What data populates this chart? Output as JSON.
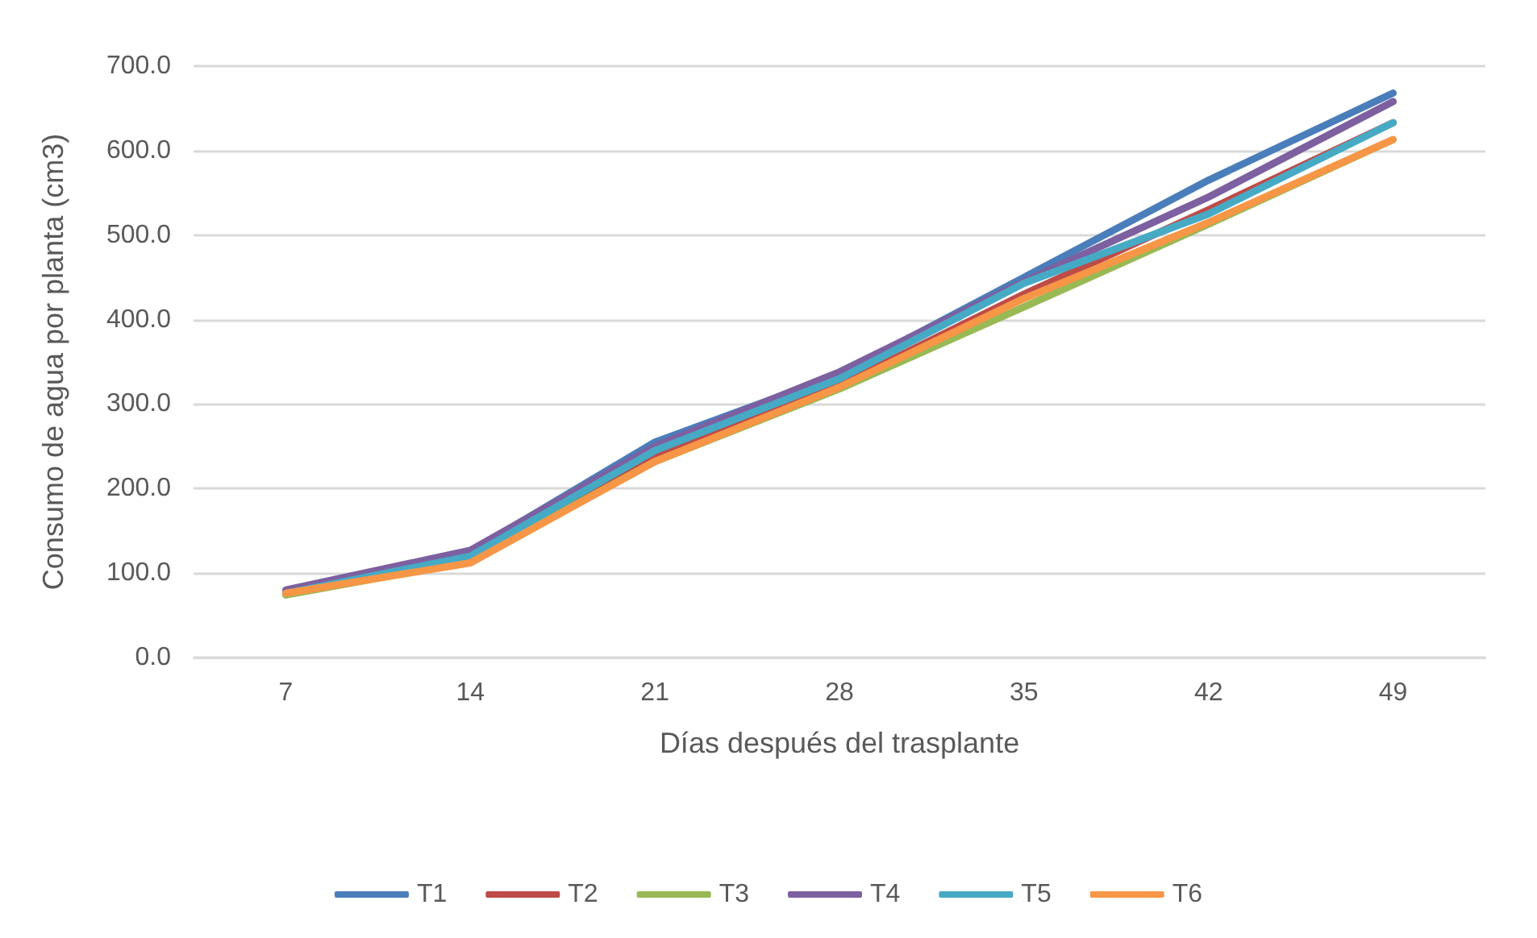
{
  "chart_data": {
    "type": "line",
    "xlabel": "Días después del trasplante",
    "ylabel": "Consumo de agua por planta (cm3)",
    "categories": [
      "7",
      "14",
      "21",
      "28",
      "35",
      "42",
      "49"
    ],
    "series": [
      {
        "name": "T1",
        "color": "#4a7ebb",
        "values": [
          76,
          125,
          255,
          335,
          450,
          565,
          668
        ]
      },
      {
        "name": "T2",
        "color": "#be4b48",
        "values": [
          76,
          118,
          238,
          322,
          430,
          530,
          633
        ]
      },
      {
        "name": "T3",
        "color": "#98b954",
        "values": [
          74,
          114,
          232,
          318,
          415,
          513,
          613
        ]
      },
      {
        "name": "T4",
        "color": "#7d60a0",
        "values": [
          80,
          127,
          250,
          338,
          445,
          545,
          658
        ]
      },
      {
        "name": "T5",
        "color": "#46aac5",
        "values": [
          76,
          120,
          245,
          330,
          443,
          525,
          633
        ]
      },
      {
        "name": "T6",
        "color": "#f79646",
        "values": [
          76,
          112,
          232,
          320,
          425,
          515,
          613
        ]
      }
    ],
    "ylim": [
      0,
      700
    ],
    "yticks": [
      {
        "value": 0,
        "label": "0.0"
      },
      {
        "value": 100,
        "label": "100.0"
      },
      {
        "value": 200,
        "label": "200.0"
      },
      {
        "value": 300,
        "label": "300.0"
      },
      {
        "value": 400,
        "label": "400.0"
      },
      {
        "value": 500,
        "label": "500.0"
      },
      {
        "value": 600,
        "label": "600.0"
      },
      {
        "value": 700,
        "label": "700.0"
      }
    ],
    "grid": "y",
    "legend": "bottom",
    "marker": "none",
    "line_style": "solid"
  }
}
